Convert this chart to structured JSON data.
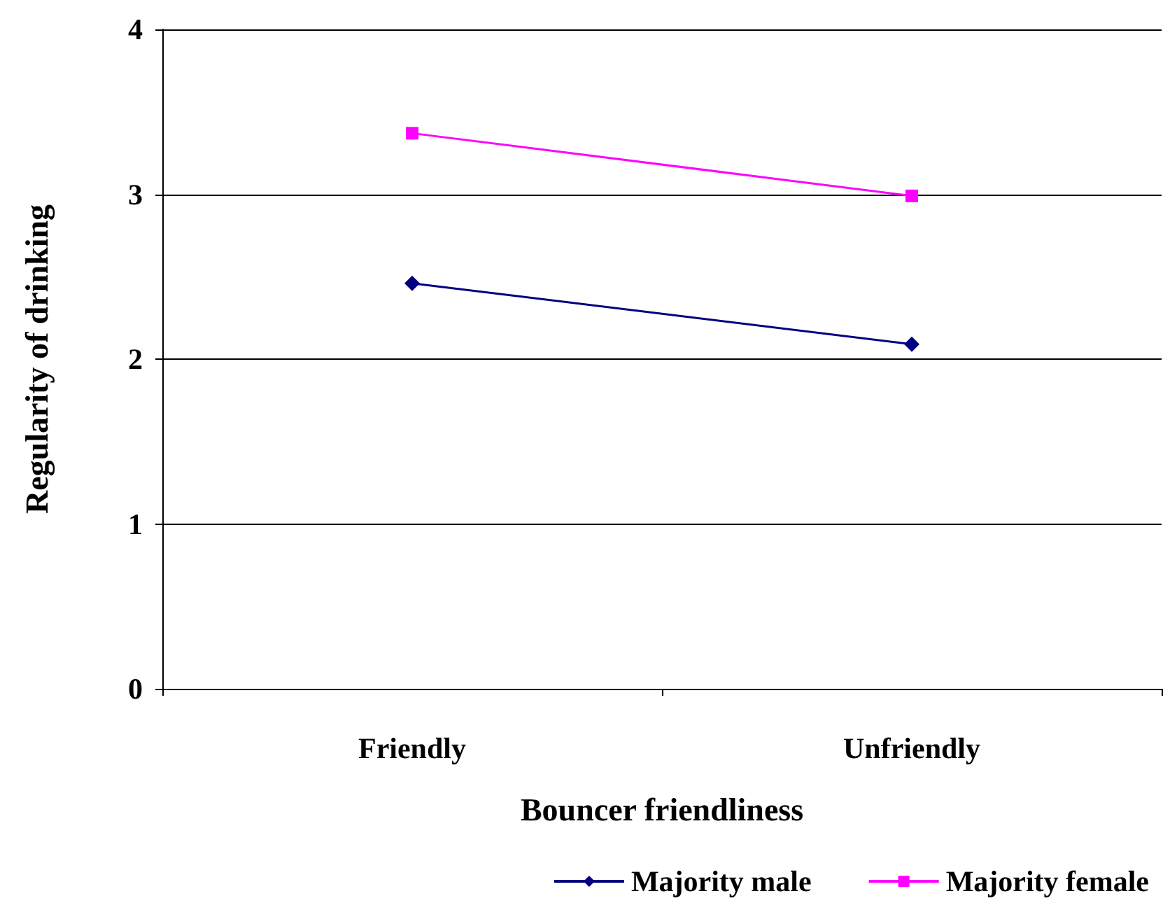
{
  "chart_data": {
    "type": "line",
    "xlabel": "Bouncer friendliness",
    "ylabel": "Regularity of drinking",
    "categories": [
      "Friendly",
      "Unfriendly"
    ],
    "series": [
      {
        "name": "Majority male",
        "color": "#000080",
        "values": [
          2.46,
          2.09
        ],
        "marker": "diamond"
      },
      {
        "name": "Majority female",
        "color": "#ff00ff",
        "values": [
          3.37,
          2.99
        ],
        "marker": "square"
      }
    ],
    "ylim": [
      0,
      4
    ],
    "yticks": [
      0,
      1,
      2,
      3,
      4
    ],
    "grid": "y",
    "legend": "bottom"
  }
}
